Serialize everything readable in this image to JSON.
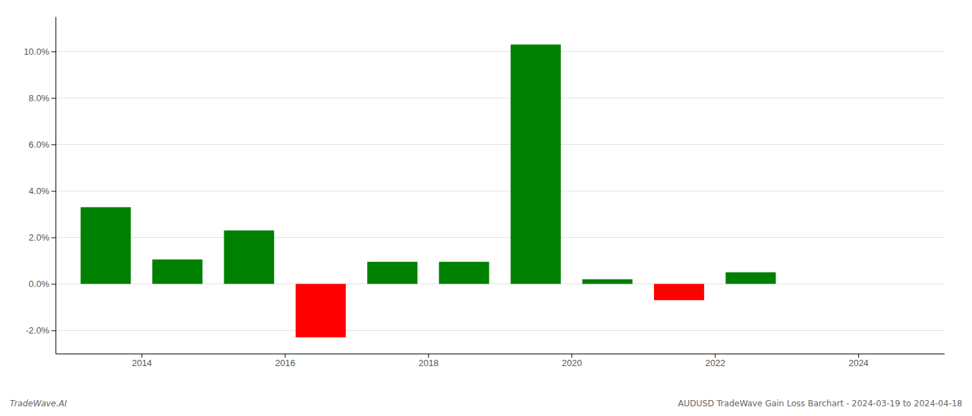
{
  "chart_data": {
    "type": "bar",
    "x": [
      2013.5,
      2014.5,
      2015.5,
      2016.5,
      2017.5,
      2018.5,
      2019.5,
      2020.5,
      2021.5,
      2022.5
    ],
    "values": [
      0.033,
      0.0105,
      0.023,
      -0.023,
      0.0095,
      0.0095,
      0.103,
      0.002,
      -0.007,
      0.005
    ],
    "colors": [
      "#008000",
      "#008000",
      "#008000",
      "#ff0000",
      "#008000",
      "#008000",
      "#008000",
      "#008000",
      "#ff0000",
      "#008000"
    ],
    "xlim": [
      2012.8,
      2025.2
    ],
    "xticks": [
      2014,
      2016,
      2018,
      2020,
      2022,
      2024
    ],
    "ylim": [
      -0.03,
      0.115
    ],
    "yticks": [
      {
        "value": -0.02,
        "label": "-2.0%"
      },
      {
        "value": 0,
        "label": "0.0%"
      },
      {
        "value": 0.02,
        "label": "2.0%"
      },
      {
        "value": 0.04,
        "label": "4.0%"
      },
      {
        "value": 0.06,
        "label": "6.0%"
      },
      {
        "value": 0.08,
        "label": "8.0%"
      },
      {
        "value": 0.1,
        "label": "10.0%"
      }
    ],
    "grid": true,
    "annotations": [
      "TradeWave.AI",
      "AUDUSD TradeWave Gain Loss Barchart - 2024-03-19 to 2024-04-18"
    ]
  }
}
